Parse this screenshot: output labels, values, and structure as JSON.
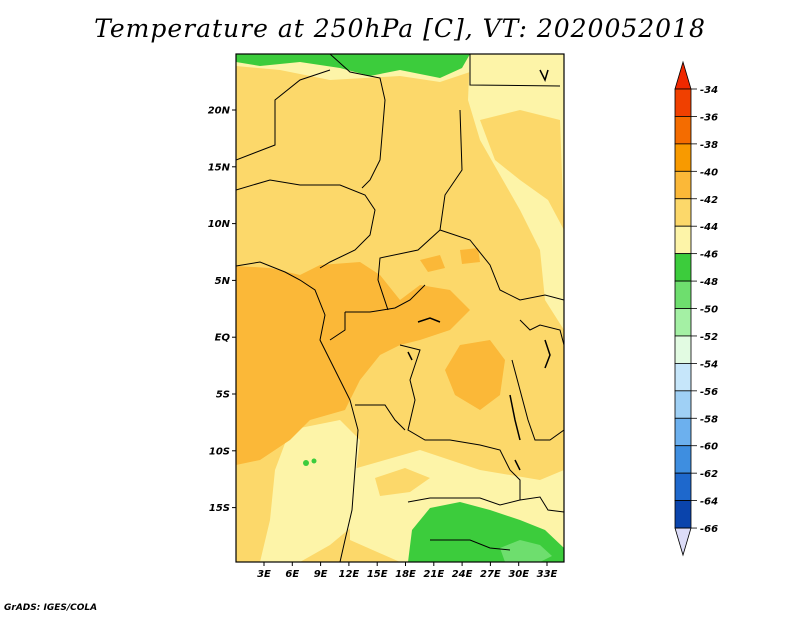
{
  "title": "Temperature at 250hPa [C], VT: 2020052018",
  "footer": "GrADS: IGES/COLA",
  "map": {
    "lat_labels": [
      "20N",
      "15N",
      "10N",
      "5N",
      "EQ",
      "5S",
      "10S",
      "15S"
    ],
    "lon_labels": [
      "3E",
      "6E",
      "9E",
      "12E",
      "15E",
      "18E",
      "21E",
      "24E",
      "27E",
      "30E",
      "33E"
    ]
  },
  "colorbar": {
    "labels": [
      "-34",
      "-36",
      "-38",
      "-40",
      "-42",
      "-44",
      "-46",
      "-48",
      "-50",
      "-52",
      "-54",
      "-56",
      "-58",
      "-60",
      "-62",
      "-64",
      "-66"
    ],
    "colors": [
      "#f04000",
      "#f46c00",
      "#f89a00",
      "#fbb838",
      "#fcd86a",
      "#fdf4a8",
      "#3ccc3c",
      "#6ede6e",
      "#a4f0a4",
      "#e2fbe2",
      "#c6e6fa",
      "#9fd0f5",
      "#6cb0ee",
      "#3e8ee0",
      "#1e68cc",
      "#0a44ac",
      "#000c6c"
    ],
    "top_arrow_color": "#f02800",
    "bottom_arrow_color": "#dcdcf8"
  }
}
